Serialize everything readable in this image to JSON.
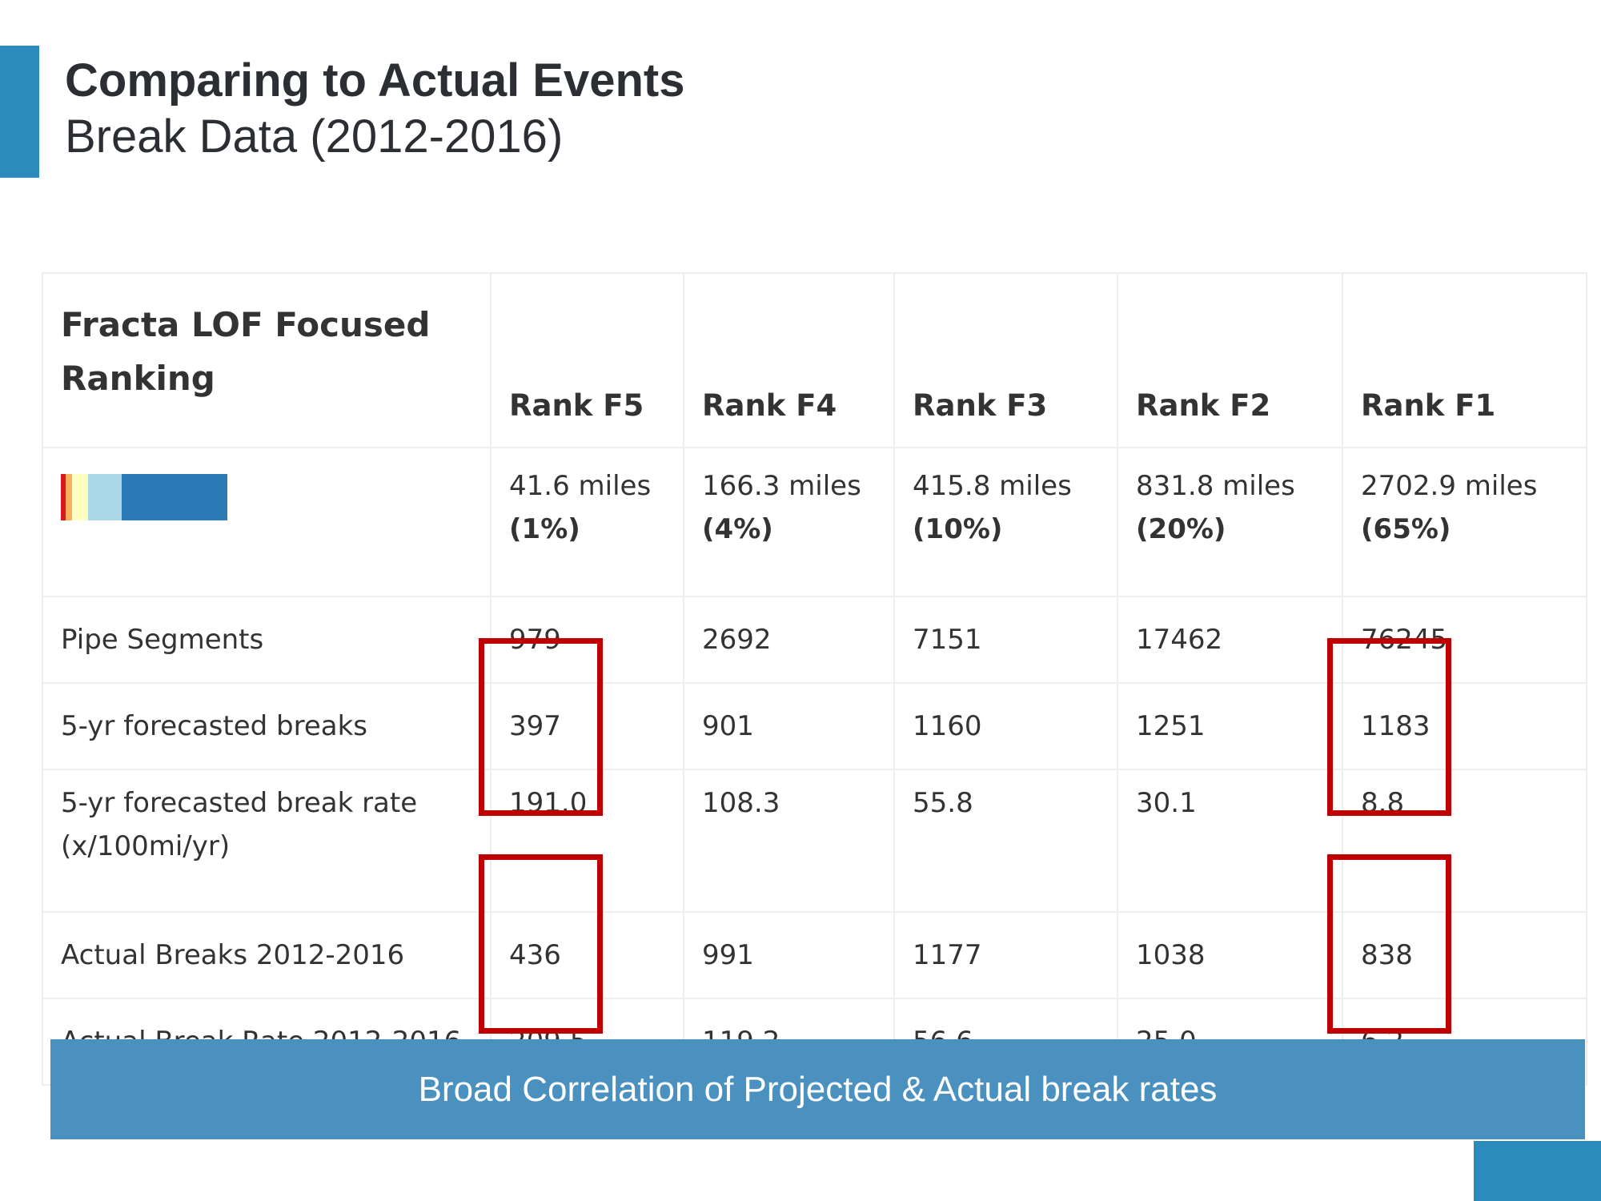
{
  "header": {
    "title": "Comparing to Actual Events",
    "subtitle": "Break Data (2012-2016)"
  },
  "table": {
    "corner_header": "Fracta LOF Focused Ranking",
    "columns": [
      "Rank F5",
      "Rank F4",
      "Rank F3",
      "Rank F2",
      "Rank F1"
    ],
    "legend_colors": [
      "#d7191c",
      "#fdae61",
      "#ffffbf",
      "#abd9e9",
      "#2c7bb6"
    ],
    "miles": [
      {
        "value": "41.6 miles",
        "pct": "(1%)"
      },
      {
        "value": "166.3 miles",
        "pct": "(4%)"
      },
      {
        "value": "415.8 miles",
        "pct": "(10%)"
      },
      {
        "value": "831.8 miles",
        "pct": "(20%)"
      },
      {
        "value": "2702.9 miles",
        "pct": "(65%)"
      }
    ],
    "rows": [
      {
        "label": "Pipe Segments",
        "values": [
          "979",
          "2692",
          "7151",
          "17462",
          "76245"
        ]
      },
      {
        "label": "5-yr forecasted breaks",
        "values": [
          "397",
          "901",
          "1160",
          "1251",
          "1183"
        ]
      },
      {
        "label": "5-yr forecasted break rate (x/100mi/yr)",
        "values": [
          "191.0",
          "108.3",
          "55.8",
          "30.1",
          "8.8"
        ]
      },
      {
        "label": "Actual Breaks 2012-2016",
        "values": [
          "436",
          "991",
          "1177",
          "1038",
          "838"
        ]
      },
      {
        "label": "Actual Break Rate 2012-2016",
        "values": [
          "209.5",
          "119.2",
          "56.6",
          "25.0",
          "6.2"
        ]
      }
    ]
  },
  "banner": {
    "text": "Broad Correlation of Projected & Actual break rates"
  },
  "colors": {
    "accent": "#2c8bbd",
    "banner": "#4a91bf",
    "highlight": "#c00000"
  }
}
